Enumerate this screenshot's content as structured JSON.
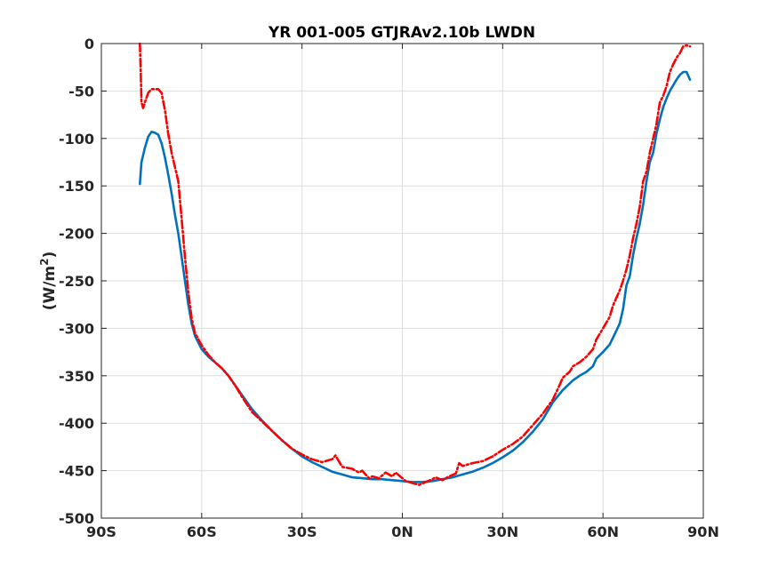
{
  "chart_data": {
    "type": "line",
    "title": "YR 001-005 GTJRAv2.10b LWDN",
    "xlabel": "",
    "ylabel": "(W/m",
    "ylabel_superscript": "2",
    "ylabel_close": ")",
    "xlim": [
      -90,
      90
    ],
    "ylim": [
      -500,
      0
    ],
    "x_ticks": [
      -90,
      -60,
      -30,
      0,
      30,
      60,
      90
    ],
    "x_tick_labels": [
      "90S",
      "60S",
      "30S",
      "0N",
      "30N",
      "60N",
      "90N"
    ],
    "y_ticks": [
      0,
      -50,
      -100,
      -150,
      -200,
      -250,
      -300,
      -350,
      -400,
      -450,
      -500
    ],
    "y_tick_labels": [
      "0",
      "-50",
      "-100",
      "-150",
      "-200",
      "-250",
      "-300",
      "-350",
      "-400",
      "-450",
      "-500"
    ],
    "grid": true,
    "legend": "none",
    "series": [
      {
        "color": "#0072BD",
        "style": "solid",
        "x": [
          -78.5,
          -78,
          -77,
          -76,
          -75,
          -74,
          -73,
          -72,
          -71,
          -70,
          -69,
          -68,
          -67,
          -66,
          -65,
          -64,
          -63,
          -62,
          -60,
          -58,
          -56,
          -54,
          -52,
          -50,
          -48,
          -45,
          -42,
          -39,
          -36,
          -33,
          -30,
          -27,
          -24,
          -21,
          -18,
          -15,
          -12,
          -9,
          -6,
          -3,
          0,
          3,
          6,
          9,
          12,
          15,
          18,
          21,
          24,
          27,
          30,
          33,
          36,
          39,
          42,
          45,
          48,
          51,
          53,
          55,
          57,
          58,
          60,
          62,
          63,
          65,
          66,
          67,
          68,
          69,
          70,
          71,
          72,
          73,
          74,
          75,
          76,
          77,
          78,
          79,
          80,
          81,
          82,
          83,
          84,
          85,
          86
        ],
        "y": [
          -148,
          -125,
          -110,
          -98,
          -93,
          -94,
          -96,
          -105,
          -120,
          -138,
          -158,
          -180,
          -200,
          -225,
          -250,
          -275,
          -295,
          -308,
          -322,
          -330,
          -336,
          -342,
          -350,
          -360,
          -370,
          -385,
          -397,
          -408,
          -418,
          -427,
          -435,
          -441,
          -446,
          -451,
          -454,
          -457,
          -458,
          -459,
          -459,
          -460,
          -461,
          -462,
          -462,
          -461,
          -459,
          -457,
          -454,
          -451,
          -447,
          -442,
          -436,
          -429,
          -420,
          -409,
          -396,
          -378,
          -365,
          -355,
          -350,
          -346,
          -340,
          -332,
          -325,
          -317,
          -310,
          -295,
          -280,
          -255,
          -245,
          -223,
          -205,
          -190,
          -170,
          -145,
          -125,
          -115,
          -95,
          -80,
          -67,
          -58,
          -50,
          -44,
          -38,
          -33,
          -30,
          -30,
          -38
        ]
      },
      {
        "color": "#FF0000",
        "style": "dashdot",
        "x": [
          -78.5,
          -78.3,
          -78.1,
          -78,
          -77.5,
          -77,
          -76,
          -75,
          -74,
          -73,
          -72,
          -71,
          -70,
          -69,
          -68,
          -67,
          -66,
          -65,
          -64,
          -63,
          -62,
          -60,
          -58,
          -56,
          -54,
          -52,
          -50,
          -48,
          -45,
          -42,
          -39,
          -36,
          -33,
          -30,
          -27,
          -24,
          -21,
          -20,
          -18,
          -15,
          -13,
          -12,
          -10,
          -9,
          -7,
          -5,
          -3,
          -2,
          0,
          1,
          3,
          5,
          7,
          9,
          10,
          12,
          14,
          16,
          17,
          18,
          19,
          21,
          24,
          27,
          30,
          33,
          36,
          39,
          42,
          45,
          47,
          48,
          50,
          51,
          53,
          55,
          57,
          58,
          60,
          62,
          63,
          64,
          65,
          66,
          67,
          68,
          69,
          70,
          71,
          72,
          73,
          74,
          75,
          76,
          77,
          78,
          79,
          80,
          81,
          82,
          83,
          84,
          85,
          86
        ],
        "y": [
          0,
          -20,
          -50,
          -62,
          -68,
          -62,
          -52,
          -48,
          -48,
          -48,
          -52,
          -70,
          -95,
          -115,
          -130,
          -145,
          -185,
          -225,
          -262,
          -290,
          -305,
          -318,
          -328,
          -336,
          -342,
          -350,
          -360,
          -372,
          -388,
          -398,
          -408,
          -418,
          -427,
          -433,
          -438,
          -441,
          -438,
          -434,
          -446,
          -448,
          -452,
          -450,
          -458,
          -456,
          -458,
          -452,
          -456,
          -452,
          -458,
          -461,
          -463,
          -465,
          -462,
          -459,
          -457,
          -460,
          -456,
          -453,
          -442,
          -445,
          -444,
          -442,
          -440,
          -435,
          -428,
          -422,
          -414,
          -402,
          -390,
          -375,
          -360,
          -352,
          -346,
          -340,
          -336,
          -330,
          -322,
          -312,
          -300,
          -288,
          -276,
          -268,
          -260,
          -250,
          -238,
          -223,
          -205,
          -190,
          -172,
          -145,
          -135,
          -115,
          -100,
          -85,
          -62,
          -55,
          -45,
          -30,
          -22,
          -15,
          -10,
          -3,
          -2,
          -3
        ]
      }
    ]
  }
}
